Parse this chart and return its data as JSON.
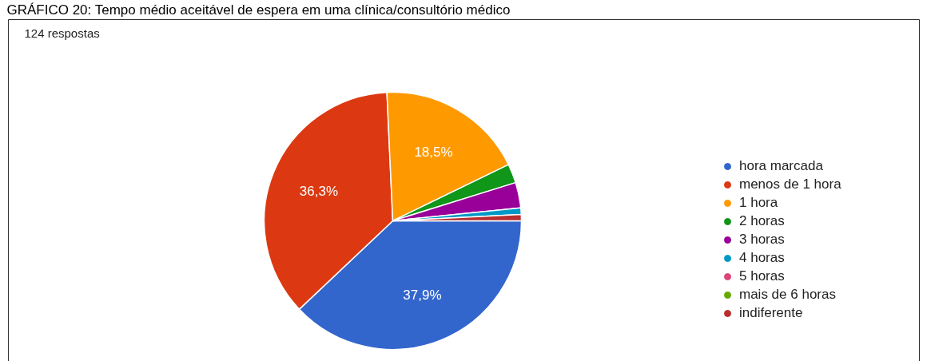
{
  "chart_data": {
    "type": "pie",
    "title": "GRÁFICO 20: Tempo médio aceitável de espera em uma clínica/consultório médico",
    "subtitle": "124 respostas",
    "categories": [
      "hora marcada",
      "menos de 1 hora",
      "1 hora",
      "2 horas",
      "3 horas",
      "4 horas",
      "5 horas",
      "mais de 6 horas",
      "indiferente"
    ],
    "values": [
      37.9,
      36.3,
      18.5,
      2.4,
      3.2,
      0.8,
      0,
      0,
      0.8
    ],
    "colors": [
      "#3366cc",
      "#dc3912",
      "#ff9900",
      "#109618",
      "#990099",
      "#0099c6",
      "#dd4477",
      "#66aa00",
      "#b82e2e"
    ],
    "value_labels": [
      "37,9%",
      "36,3%",
      "18,5%",
      null,
      null,
      null,
      null,
      null,
      null
    ],
    "legend": "right"
  }
}
